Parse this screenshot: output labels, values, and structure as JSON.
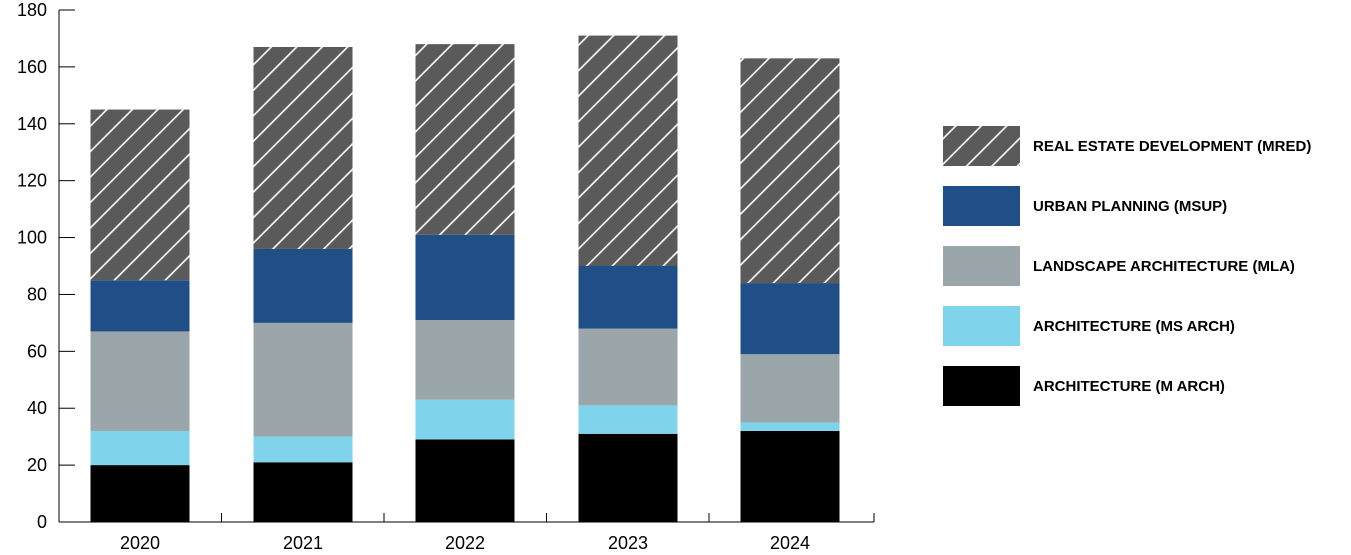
{
  "chart_data": {
    "type": "bar",
    "stacked": true,
    "categories": [
      "2020",
      "2021",
      "2022",
      "2023",
      "2024"
    ],
    "ylim": [
      0,
      180
    ],
    "yticks": [
      0,
      20,
      40,
      60,
      80,
      100,
      120,
      140,
      160,
      180
    ],
    "grid": false,
    "legend_position": "right",
    "series": [
      {
        "name": "ARCHITECTURE (M ARCH)",
        "color": "#000000",
        "pattern": "solid",
        "values": [
          20,
          21,
          29,
          31,
          32
        ]
      },
      {
        "name": "ARCHITECTURE (MS ARCH)",
        "color": "#7fd3ea",
        "pattern": "solid",
        "values": [
          12,
          9,
          14,
          10,
          3
        ]
      },
      {
        "name": "LANDSCAPE ARCHITECTURE (MLA)",
        "color": "#9aa6aa",
        "pattern": "solid",
        "values": [
          35,
          40,
          28,
          27,
          24
        ]
      },
      {
        "name": "URBAN PLANNING (MSUP)",
        "color": "#1f4f86",
        "pattern": "solid",
        "values": [
          18,
          26,
          30,
          22,
          25
        ]
      },
      {
        "name": "REAL ESTATE DEVELOPMENT (MRED)",
        "color": "#5a5a5a",
        "pattern": "diagonal-hatch",
        "values": [
          60,
          71,
          67,
          81,
          79
        ]
      }
    ]
  }
}
